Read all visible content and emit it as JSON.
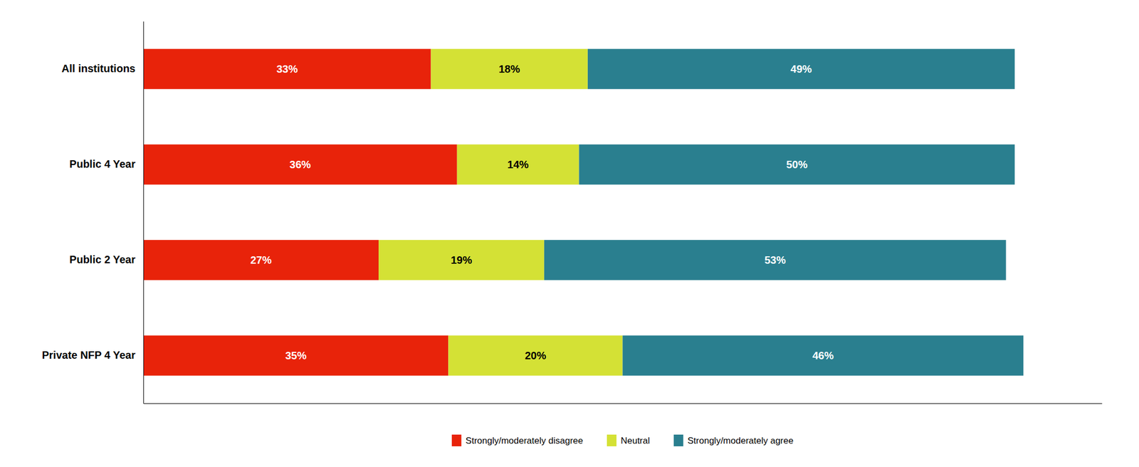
{
  "chart_data": {
    "type": "bar",
    "orientation": "horizontal",
    "stacked": true,
    "data_labels": true,
    "categories": [
      "Private NFP 4 Year",
      "Public 2 Year",
      "Public 4 Year",
      "All institutions"
    ],
    "series": [
      {
        "name": "Strongly/moderately disagree",
        "color": "#E8230A",
        "values": [
          35,
          27,
          36,
          33
        ],
        "value_labels": [
          "35%",
          "27%",
          "36%",
          "33%"
        ]
      },
      {
        "name": "Neutral",
        "color": "#D4E135",
        "values": [
          20,
          19,
          14,
          18
        ],
        "value_labels": [
          "20%",
          "19%",
          "14%",
          "18%"
        ]
      },
      {
        "name": "Strongly/moderately agree",
        "color": "#2A7F8F",
        "values": [
          46,
          53,
          50,
          49
        ],
        "value_labels": [
          "46%",
          "53%",
          "50%",
          "49%"
        ]
      }
    ],
    "xlim": [
      0,
      110
    ],
    "legend": "bottom",
    "grid": false,
    "tick_labels": "y"
  }
}
